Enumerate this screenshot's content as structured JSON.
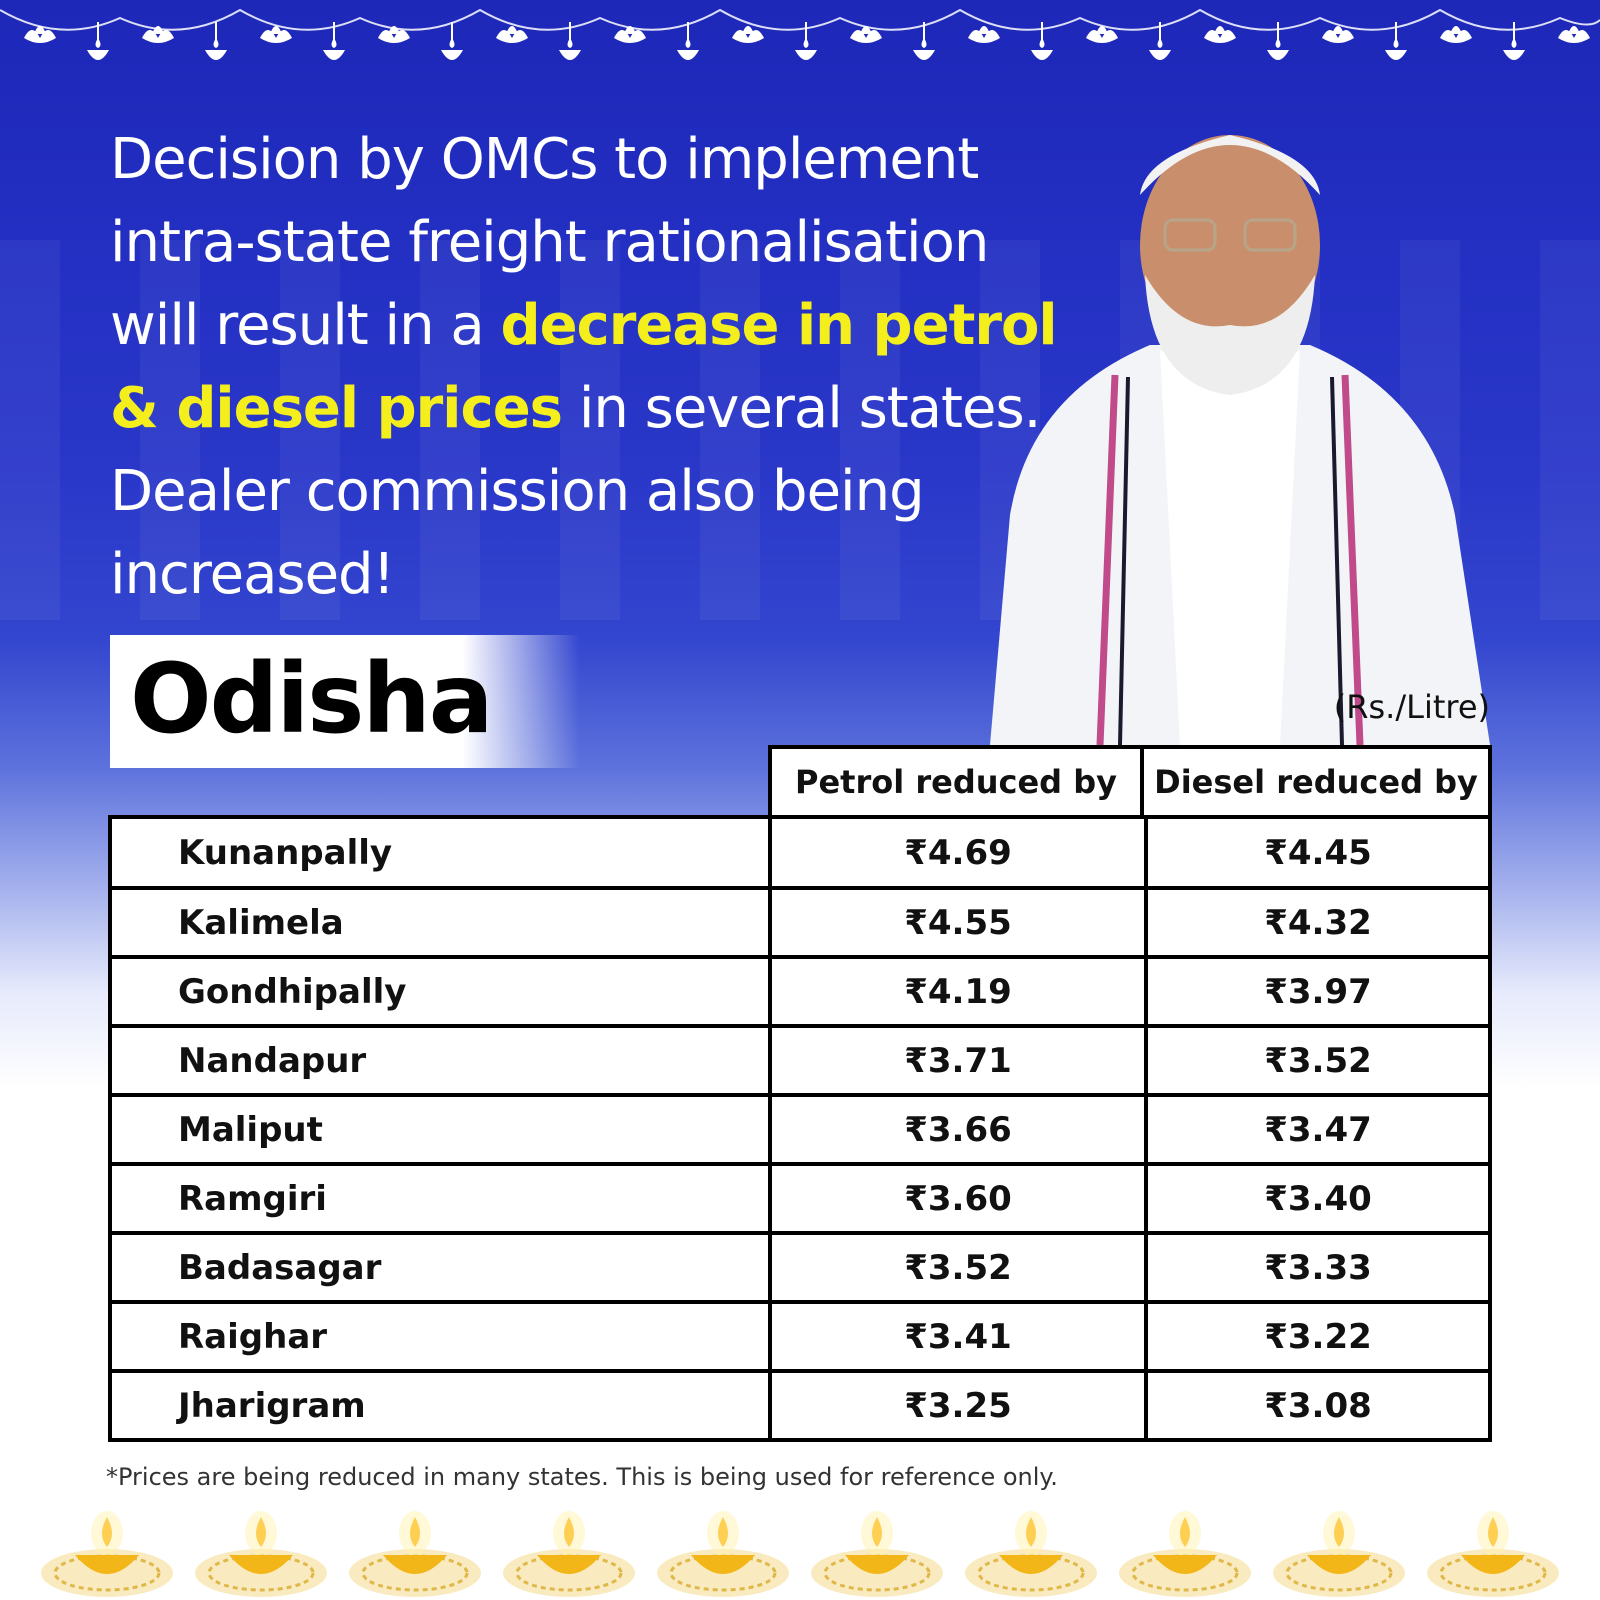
{
  "headline": {
    "part1": "Decision by OMCs to implement intra-state freight rationalisation will result in a ",
    "highlight": "decrease in petrol & diesel prices",
    "part2": " in several states. Dealer commission also being increased!"
  },
  "state": "Odisha",
  "unit": "(Rs./Litre)",
  "table": {
    "headers": [
      "Petrol reduced by",
      "Diesel reduced by"
    ],
    "rows": [
      {
        "place": "Kunanpally",
        "petrol": "₹4.69",
        "diesel": "₹4.45"
      },
      {
        "place": "Kalimela",
        "petrol": "₹4.55",
        "diesel": "₹4.32"
      },
      {
        "place": "Gondhipally",
        "petrol": "₹4.19",
        "diesel": "₹3.97"
      },
      {
        "place": "Nandapur",
        "petrol": "₹3.71",
        "diesel": "₹3.52"
      },
      {
        "place": "Maliput",
        "petrol": "₹3.66",
        "diesel": "₹3.47"
      },
      {
        "place": "Ramgiri",
        "petrol": "₹3.60",
        "diesel": "₹3.40"
      },
      {
        "place": "Badasagar",
        "petrol": "₹3.52",
        "diesel": "₹3.33"
      },
      {
        "place": "Raighar",
        "petrol": "₹3.41",
        "diesel": "₹3.22"
      },
      {
        "place": "Jharigram",
        "petrol": "₹3.25",
        "diesel": "₹3.08"
      }
    ]
  },
  "footnote": "*Prices are being reduced in many states. This is being used for reference only.",
  "colors": {
    "background_blue": "#2431c4",
    "highlight_yellow": "#f4ef1c",
    "diya_gold": "#f2b619"
  },
  "icons": {
    "garland": "lotus-lamp-garland-icon",
    "diya": "diya-lamp-icon"
  }
}
